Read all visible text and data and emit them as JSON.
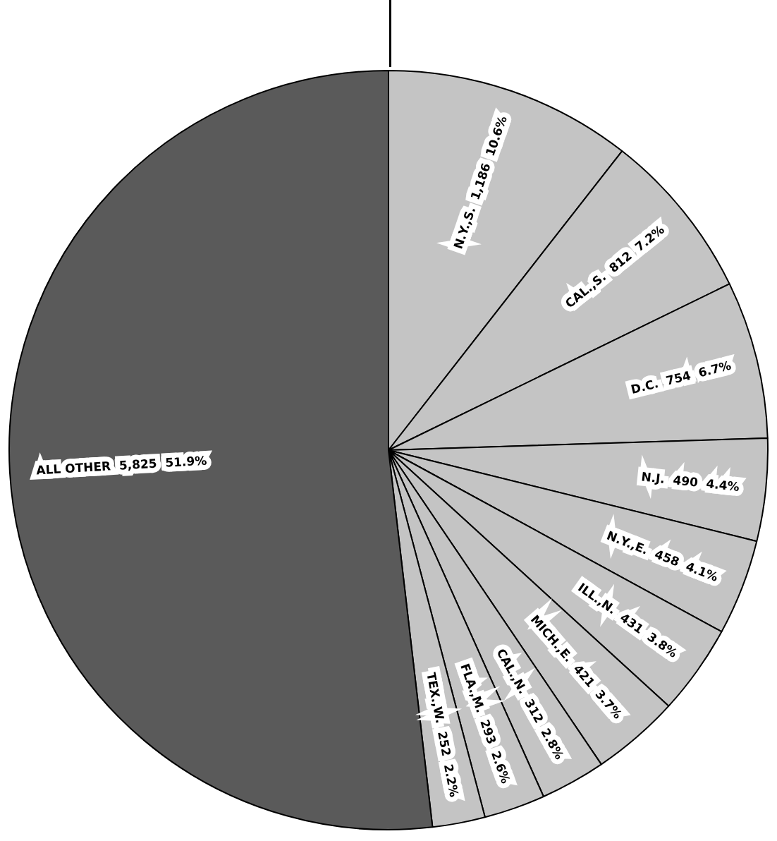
{
  "chart_data": {
    "type": "pie",
    "categories": [
      "N.Y.,S.",
      "CAL.,S.",
      "D.C.",
      "N.J.",
      "N.Y.,E.",
      "ILL.,N.",
      "MICH.,E.",
      "CAL.,N.",
      "FLA.,M.",
      "TEX.,W.",
      "ALL OTHER"
    ],
    "values": [
      1186,
      812,
      754,
      490,
      458,
      431,
      421,
      312,
      293,
      252,
      5825
    ],
    "value_labels": [
      "1,186  10.6%",
      "812  7.2%",
      "754  6.7%",
      "490  4.4%",
      "458  4.1%",
      "431  3.8%",
      "421  3.7%",
      "312  2.8%",
      "293  2.6%",
      "252  2.2%",
      "5,825  51.9%"
    ],
    "colors": [
      "#c4c4c4",
      "#c4c4c4",
      "#c4c4c4",
      "#c4c4c4",
      "#c4c4c4",
      "#c4c4c4",
      "#c4c4c4",
      "#c4c4c4",
      "#c4c4c4",
      "#c4c4c4",
      "#5a5a5a"
    ],
    "legend": false
  }
}
